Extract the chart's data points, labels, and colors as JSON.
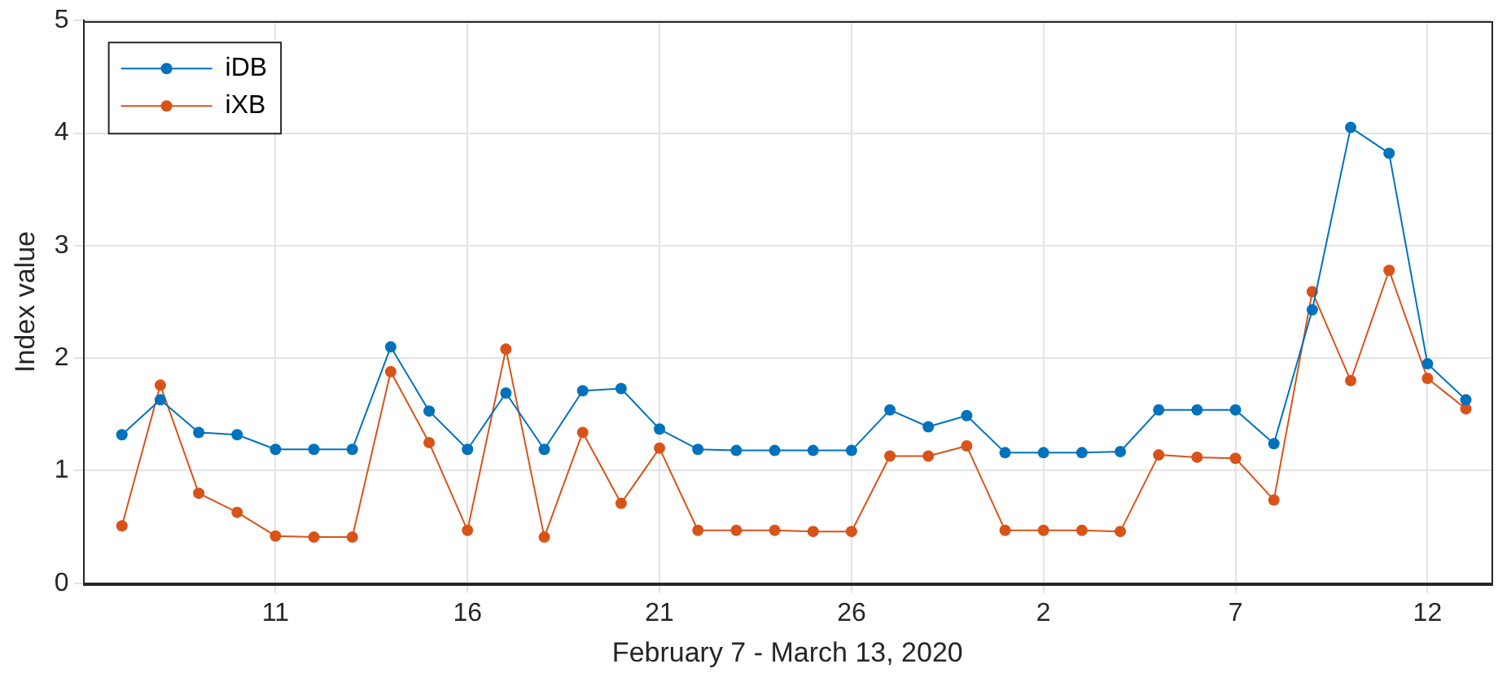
{
  "chart_data": {
    "type": "line",
    "xlabel": "February 7 - March 13, 2020",
    "ylabel": "Index value",
    "x": [
      "2020-02-07",
      "2020-02-08",
      "2020-02-09",
      "2020-02-10",
      "2020-02-11",
      "2020-02-12",
      "2020-02-13",
      "2020-02-14",
      "2020-02-15",
      "2020-02-16",
      "2020-02-17",
      "2020-02-18",
      "2020-02-19",
      "2020-02-20",
      "2020-02-21",
      "2020-02-22",
      "2020-02-23",
      "2020-02-24",
      "2020-02-25",
      "2020-02-26",
      "2020-02-27",
      "2020-02-28",
      "2020-02-29",
      "2020-03-01",
      "2020-03-02",
      "2020-03-03",
      "2020-03-04",
      "2020-03-05",
      "2020-03-06",
      "2020-03-07",
      "2020-03-08",
      "2020-03-09",
      "2020-03-10",
      "2020-03-11",
      "2020-03-12",
      "2020-03-13"
    ],
    "series": [
      {
        "name": "iDB",
        "color": "#0072bd",
        "values": [
          1.32,
          1.63,
          1.34,
          1.32,
          1.19,
          1.19,
          1.19,
          2.1,
          1.53,
          1.19,
          1.69,
          1.19,
          1.71,
          1.73,
          1.37,
          1.19,
          1.18,
          1.18,
          1.18,
          1.18,
          1.54,
          1.39,
          1.49,
          1.16,
          1.16,
          1.16,
          1.17,
          1.54,
          1.54,
          1.54,
          1.24,
          2.43,
          4.05,
          3.82,
          1.95,
          1.63
        ]
      },
      {
        "name": "iXB",
        "color": "#d95319",
        "values": [
          0.51,
          1.76,
          0.8,
          0.63,
          0.42,
          0.41,
          0.41,
          1.88,
          1.25,
          0.47,
          2.08,
          0.41,
          1.34,
          0.71,
          1.2,
          0.47,
          0.47,
          0.47,
          0.46,
          0.46,
          1.13,
          1.13,
          1.22,
          0.47,
          0.47,
          0.47,
          0.46,
          1.14,
          1.12,
          1.11,
          0.74,
          2.59,
          1.8,
          2.78,
          1.82,
          1.55
        ]
      }
    ],
    "xlim": [
      "2020-02-06",
      "2020-03-13T16:00"
    ],
    "xticks": [
      {
        "value": "2020-02-11",
        "label": "11"
      },
      {
        "value": "2020-02-16",
        "label": "16"
      },
      {
        "value": "2020-02-21",
        "label": "21"
      },
      {
        "value": "2020-02-26",
        "label": "26"
      },
      {
        "value": "2020-03-02",
        "label": "2"
      },
      {
        "value": "2020-03-07",
        "label": "7"
      },
      {
        "value": "2020-03-12",
        "label": "12"
      }
    ],
    "ylim": [
      0,
      5
    ],
    "yticks": [
      0,
      1,
      2,
      3,
      4,
      5
    ],
    "grid": true,
    "legend": "top left",
    "marker": "circle",
    "line_style": "solid"
  }
}
